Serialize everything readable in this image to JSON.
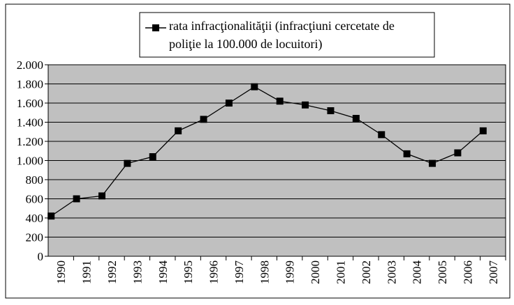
{
  "chart_data": {
    "type": "line",
    "categories": [
      "1990",
      "1991",
      "1992",
      "1993",
      "1994",
      "1995",
      "1996",
      "1997",
      "1998",
      "1999",
      "2000",
      "2001",
      "2002",
      "2003",
      "2004",
      "2005",
      "2006",
      "2007"
    ],
    "series": [
      {
        "name": "rata infracţionalităţii (infracţiuni cercetate de poliţie la 100.000 de locuitori)",
        "color": "#000000",
        "values": [
          420,
          600,
          630,
          970,
          1040,
          1310,
          1430,
          1600,
          1770,
          1620,
          1580,
          1520,
          1440,
          1270,
          1070,
          970,
          1080,
          1310
        ]
      }
    ],
    "ylim": [
      0,
      2000
    ],
    "yticks": [
      0,
      {
        "value": 200,
        "label": "200"
      },
      {
        "value": 400,
        "label": "400"
      },
      {
        "value": 600,
        "label": "600"
      },
      {
        "value": 800,
        "label": "800"
      },
      {
        "value": 1000,
        "label": "1.000"
      },
      {
        "value": 1200,
        "label": "1.200"
      },
      {
        "value": 1400,
        "label": "1.400"
      },
      {
        "value": 1600,
        "label": "1.600"
      },
      {
        "value": 1800,
        "label": "1.800"
      },
      {
        "value": 2000,
        "label": "2.000"
      }
    ],
    "grid": true,
    "plot_background": "#c0c0c0",
    "legend": "top"
  }
}
